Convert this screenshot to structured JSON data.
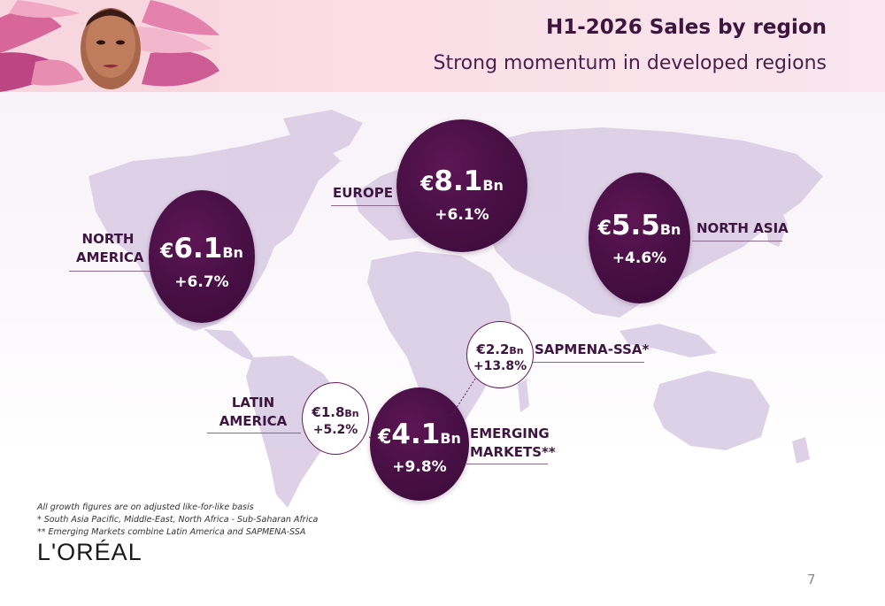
{
  "title": "H1-2026 Sales by region",
  "subtitle": "Strong momentum in developed regions",
  "regions": {
    "north_america": {
      "label_line1": "NORTH",
      "label_line2": "AMERICA",
      "currency": "€",
      "amount": "6.1",
      "unit": "Bn",
      "growth": "+6.7%"
    },
    "europe": {
      "label": "EUROPE",
      "currency": "€",
      "amount": "8.1",
      "unit": "Bn",
      "growth": "+6.1%"
    },
    "north_asia": {
      "label": "NORTH ASIA",
      "currency": "€",
      "amount": "5.5",
      "unit": "Bn",
      "growth": "+4.6%"
    },
    "sapmena_ssa": {
      "label": "SAPMENA-SSA*",
      "currency": "€",
      "amount": "2.2",
      "unit": "Bn",
      "growth": "+13.8%"
    },
    "latin_america": {
      "label_line1": "LATIN",
      "label_line2": "AMERICA",
      "currency": "€",
      "amount": "1.8",
      "unit": "Bn",
      "growth": "+5.2%"
    },
    "emerging_markets": {
      "label_line1": "EMERGING",
      "label_line2": "MARKETS**",
      "currency": "€",
      "amount": "4.1",
      "unit": "Bn",
      "growth": "+9.8%"
    }
  },
  "footnotes": [
    "All growth figures are on adjusted like-for-like basis",
    "* South Asia Pacific, Middle-East, North Africa - Sub-Saharan Africa",
    "** Emerging Markets combine Latin America and SAPMENA-SSA"
  ],
  "logo_text": "L'ORÉAL",
  "page_number": "7",
  "colors": {
    "bubble": "#4a1046",
    "text": "#3d1540",
    "map": "#d9cde3",
    "header": "#f9dbe3"
  }
}
